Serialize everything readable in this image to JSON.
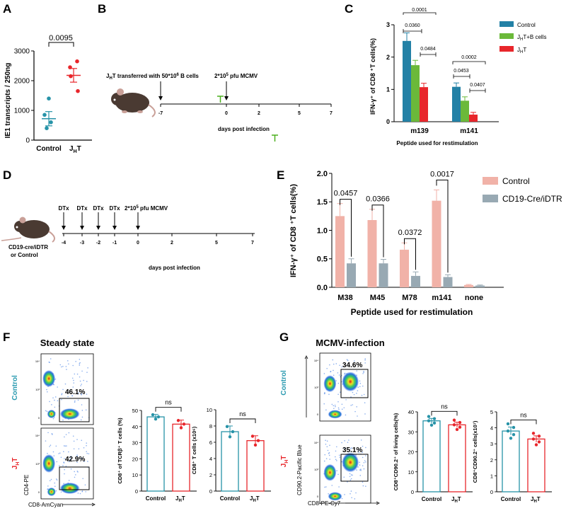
{
  "figure": {
    "background": "#ffffff",
    "colors": {
      "ctrl_dot": "#2793a8",
      "jht_dot": "#e8262b",
      "blue_bar": "#2381a6",
      "green_bar": "#6bb93a",
      "red_bar": "#e8262b",
      "pink_bar": "#f1b2a8",
      "gray_bar": "#98a9b3",
      "teal_text": "#2a9ab0",
      "timeline_green": "#4caf1e"
    }
  },
  "panels": {
    "A": {
      "letter": "A",
      "ylabel": "IE1 transcripts / 250ng",
      "yticks": [
        "0",
        "1000",
        "2000",
        "3000"
      ],
      "xticks": [
        "Control",
        "J",
        "H",
        "T"
      ],
      "pvalue": "0.0095"
    },
    "B": {
      "letter": "B",
      "transfer_text": "J",
      "transfer_sub": "H",
      "transfer_rest": "T transferred with 50*10",
      "transfer_sup": "6",
      "transfer_end": " B cells",
      "infection_text": "2*10",
      "infection_sup": "5",
      "infection_end": " pfu  MCMV",
      "axis_ticks": [
        "-7",
        "0",
        "2",
        "5",
        "7"
      ],
      "axis_label": "days post infection"
    },
    "C": {
      "letter": "C",
      "ylabel": "IFN-γ⁺ of CD8 ⁺T cells(%)",
      "xlabel": "Peptide used for restimulation",
      "yticks": [
        "0",
        "1",
        "2",
        "3"
      ],
      "groups": [
        "m139",
        "m141"
      ],
      "legend": [
        "Control",
        "J",
        "H",
        "T+B cells",
        "J",
        "H",
        "T"
      ],
      "pvalues": [
        "0.0001",
        "0.0360",
        "0.0484",
        "0.0002",
        "0.0453",
        "0.0407"
      ]
    },
    "D": {
      "letter": "D",
      "dtx_label": "DTx",
      "infection_text": "2*10",
      "infection_sup": "5",
      "infection_end": " pfu  MCMV",
      "axis_ticks": [
        "-4",
        "-3",
        "-2",
        "-1",
        "0",
        "2",
        "5",
        "7"
      ],
      "axis_label": "days post infection",
      "mouse_label_1": "CD19-cre/iDTR",
      "mouse_label_2": "or Control"
    },
    "E": {
      "letter": "E",
      "ylabel": "IFN-γ⁺ of CD8 ⁺T cells(%)",
      "xlabel": "Peptide used for restimulation",
      "yticks": [
        "0.0",
        "0.5",
        "1.0",
        "1.5",
        "2.0"
      ],
      "groups": [
        "M38",
        "M45",
        "M78",
        "m141",
        "none"
      ],
      "legend": [
        "Control",
        "CD19-Cre/iDTR"
      ],
      "pvalues": [
        "0.0457",
        "0.0366",
        "0.0372",
        "0.0017"
      ]
    },
    "F": {
      "letter": "F",
      "title": "Steady state",
      "row_labels": [
        "Control",
        "J",
        "H",
        "T"
      ],
      "gate_pcts": [
        "46.1%",
        "42.9%"
      ],
      "flow_x": "CD8-AmCyan",
      "flow_y": "CD4-PE",
      "bar1_ylabel": "CD8⁺ of TCRβ⁺ T cells (%)",
      "bar1_yticks": [
        "0",
        "10",
        "20",
        "30",
        "40",
        "50"
      ],
      "bar2_ylabel": "CD8⁺ T cells (x10⁶)",
      "bar2_yticks": [
        "0",
        "2",
        "4",
        "6",
        "8",
        "10"
      ],
      "xticks": [
        "Control",
        "J",
        "H",
        "T"
      ],
      "ns": "ns"
    },
    "G": {
      "letter": "G",
      "title": "MCMV-infection",
      "row_labels": [
        "Control",
        "J",
        "H",
        "T"
      ],
      "gate_pcts": [
        "34.6%",
        "35.1%"
      ],
      "flow_x": "CD8-PE-Cy7",
      "flow_y": "CD90.2-Pacific Blue",
      "bar1_ylabel": "CD8⁺CD90.2⁺ of living cells(%)",
      "bar1_yticks": [
        "0",
        "10",
        "20",
        "30",
        "40"
      ],
      "bar2_ylabel": "CD8⁺CD90.2⁺ cells(x10⁷)",
      "bar2_yticks": [
        "0",
        "1",
        "2",
        "3",
        "4",
        "5"
      ],
      "xticks": [
        "Control",
        "J",
        "H",
        "T"
      ],
      "ns": "ns"
    }
  },
  "chart_data": [
    {
      "panel": "A",
      "type": "scatter",
      "categories": [
        "Control",
        "JHT"
      ],
      "series": [
        {
          "values": [
            400,
            600,
            850,
            1400
          ],
          "mean": 720,
          "sem": 240
        },
        {
          "values": [
            1650,
            2150,
            2450,
            2650
          ],
          "mean": 2180,
          "sem": 230
        }
      ],
      "ylabel": "IE1 transcripts / 250ng",
      "ylim": [
        0,
        3000
      ]
    },
    {
      "panel": "C",
      "type": "bar",
      "categories": [
        "m139",
        "m141"
      ],
      "series": [
        {
          "name": "Control",
          "values": [
            2.5,
            1.08
          ],
          "err": [
            0.25,
            0.12
          ]
        },
        {
          "name": "JHT+B cells",
          "values": [
            1.75,
            0.65
          ],
          "err": [
            0.15,
            0.12
          ]
        },
        {
          "name": "JHT",
          "values": [
            1.07,
            0.22
          ],
          "err": [
            0.12,
            0.07
          ]
        }
      ],
      "ylabel": "IFN-γ+ of CD8+T cells(%)",
      "xlabel": "Peptide used for restimulation",
      "ylim": [
        0,
        3
      ]
    },
    {
      "panel": "E",
      "type": "bar",
      "categories": [
        "M38",
        "M45",
        "M78",
        "m141",
        "none"
      ],
      "series": [
        {
          "name": "Control",
          "values": [
            1.25,
            1.18,
            0.66,
            1.52,
            0.04
          ],
          "err": [
            0.22,
            0.19,
            0.12,
            0.19,
            0.01
          ]
        },
        {
          "name": "CD19-Cre/iDTR",
          "values": [
            0.42,
            0.42,
            0.2,
            0.18,
            0.03
          ],
          "err": [
            0.08,
            0.07,
            0.07,
            0.04,
            0.01
          ]
        }
      ],
      "ylabel": "IFN-γ+ of CD8 +T cells(%)",
      "xlabel": "Peptide used for restimulation",
      "ylim": [
        0,
        2
      ]
    },
    {
      "panel": "F-left",
      "type": "bar",
      "categories": [
        "Control",
        "JHT"
      ],
      "series": [
        {
          "values": [
            46,
            41.5
          ],
          "err": [
            1.5,
            2.5
          ]
        }
      ],
      "ylabel": "CD8+ of TCRβ+ T cells (%)",
      "ylim": [
        0,
        50
      ]
    },
    {
      "panel": "F-right",
      "type": "bar",
      "categories": [
        "Control",
        "JHT"
      ],
      "series": [
        {
          "values": [
            7.3,
            6.2
          ],
          "err": [
            0.7,
            0.6
          ]
        }
      ],
      "ylabel": "CD8+ T cells (x10^6)",
      "ylim": [
        0,
        10
      ]
    },
    {
      "panel": "G-left",
      "type": "bar",
      "categories": [
        "Control",
        "JHT"
      ],
      "series": [
        {
          "values": [
            35.5,
            33.5
          ],
          "err": [
            1.2,
            1.3
          ]
        }
      ],
      "ylabel": "CD8+CD90.2+ of living cells(%)",
      "ylim": [
        0,
        40
      ]
    },
    {
      "panel": "G-right",
      "type": "bar",
      "categories": [
        "Control",
        "JHT"
      ],
      "series": [
        {
          "values": [
            3.8,
            3.3
          ],
          "err": [
            0.25,
            0.2
          ]
        }
      ],
      "ylabel": "CD8+CD90.2+ cells(x10^7)",
      "ylim": [
        0,
        5
      ]
    }
  ]
}
